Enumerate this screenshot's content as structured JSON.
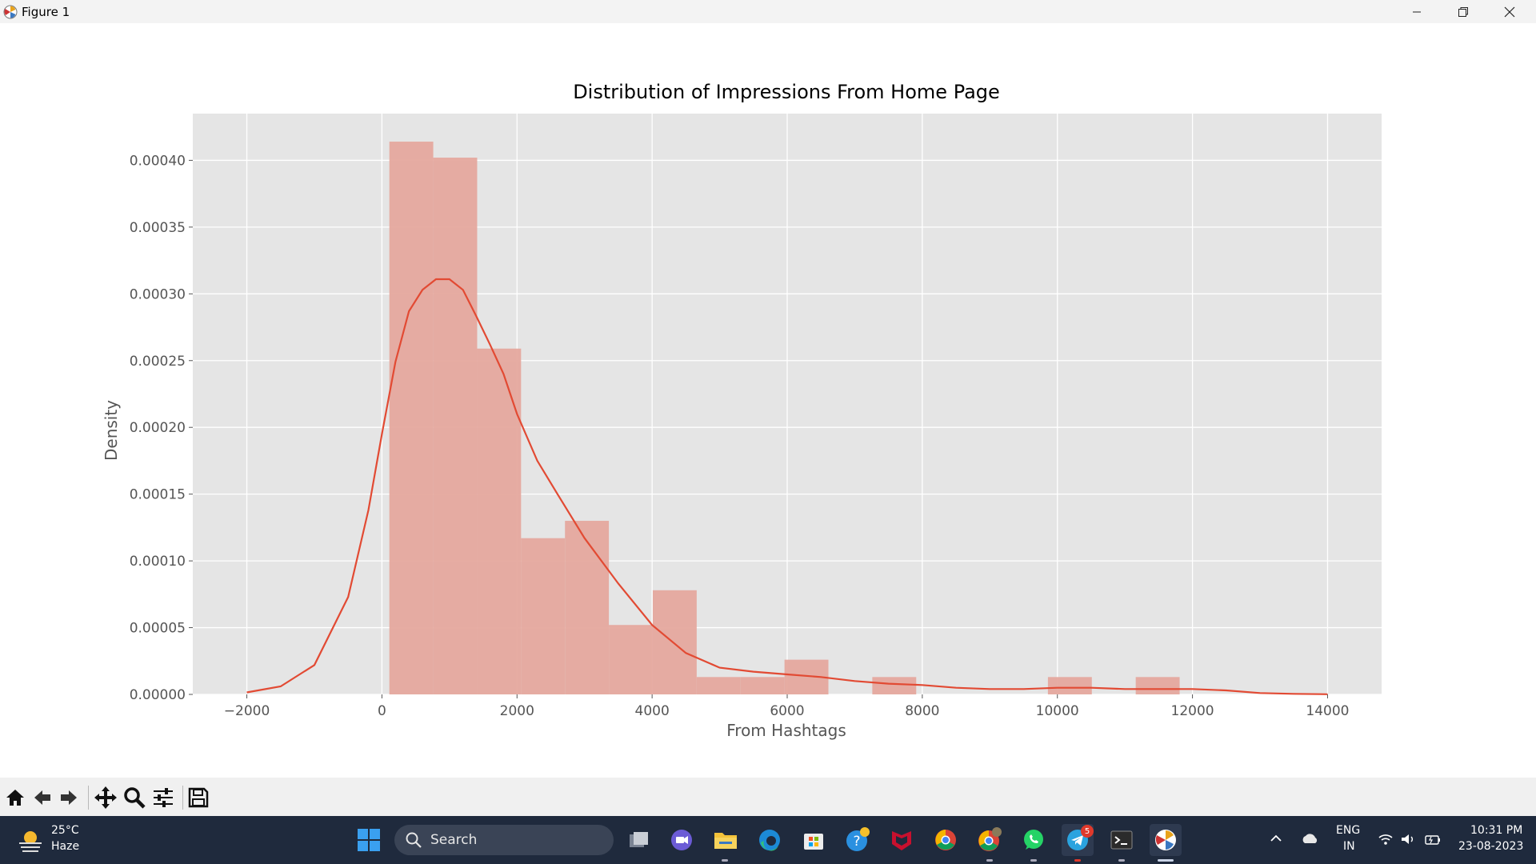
{
  "window": {
    "title": "Figure 1"
  },
  "chart_data": {
    "type": "histogram",
    "title": "Distribution of Impressions From Home Page",
    "xlabel": "From Hashtags",
    "ylabel": "Density",
    "xlim": [
      -2800,
      14800
    ],
    "ylim": [
      0,
      0.000435
    ],
    "xticks": [
      -2000,
      0,
      2000,
      4000,
      6000,
      8000,
      10000,
      12000,
      14000
    ],
    "xtick_labels": [
      "−2000",
      "0",
      "2000",
      "4000",
      "6000",
      "8000",
      "10000",
      "12000",
      "14000"
    ],
    "yticks": [
      0,
      5e-05,
      0.0001,
      0.00015,
      0.0002,
      0.00025,
      0.0003,
      0.00035,
      0.0004
    ],
    "ytick_labels": [
      "0.00000",
      "0.00005",
      "0.00010",
      "0.00015",
      "0.00020",
      "0.00025",
      "0.00030",
      "0.00035",
      "0.00040"
    ],
    "grid": true,
    "colors": {
      "bar": "#e5a89e",
      "kde": "#e24a33",
      "axes_bg": "#e5e5e5",
      "grid": "#ffffff"
    },
    "bins": [
      {
        "x0": 110,
        "x1": 760,
        "density": 0.000414
      },
      {
        "x0": 760,
        "x1": 1410,
        "density": 0.000402
      },
      {
        "x0": 1410,
        "x1": 2060,
        "density": 0.000259
      },
      {
        "x0": 2060,
        "x1": 2710,
        "density": 0.000117
      },
      {
        "x0": 2710,
        "x1": 3360,
        "density": 0.00013
      },
      {
        "x0": 3360,
        "x1": 4010,
        "density": 5.2e-05
      },
      {
        "x0": 4010,
        "x1": 4660,
        "density": 7.8e-05
      },
      {
        "x0": 4660,
        "x1": 5310,
        "density": 1.3e-05
      },
      {
        "x0": 5310,
        "x1": 5960,
        "density": 1.3e-05
      },
      {
        "x0": 5960,
        "x1": 6610,
        "density": 2.6e-05
      },
      {
        "x0": 6610,
        "x1": 7260,
        "density": 0
      },
      {
        "x0": 7260,
        "x1": 7910,
        "density": 1.3e-05
      },
      {
        "x0": 7910,
        "x1": 8560,
        "density": 0
      },
      {
        "x0": 8560,
        "x1": 9210,
        "density": 0
      },
      {
        "x0": 9210,
        "x1": 9860,
        "density": 0
      },
      {
        "x0": 9860,
        "x1": 10510,
        "density": 1.3e-05
      },
      {
        "x0": 10510,
        "x1": 11160,
        "density": 0
      },
      {
        "x0": 11160,
        "x1": 11810,
        "density": 1.3e-05
      }
    ],
    "kde": {
      "x": [
        -2000,
        -1500,
        -1000,
        -500,
        -200,
        0,
        200,
        400,
        600,
        800,
        1000,
        1200,
        1400,
        1600,
        1800,
        2000,
        2300,
        2600,
        3000,
        3500,
        4000,
        4500,
        5000,
        5500,
        6000,
        6500,
        7000,
        7500,
        8000,
        8500,
        9000,
        9500,
        10000,
        10500,
        11000,
        11500,
        12000,
        12500,
        13000,
        13500,
        14000
      ],
      "y": [
        1.5e-06,
        6e-06,
        2.2e-05,
        7.3e-05,
        0.000138,
        0.000195,
        0.000249,
        0.000287,
        0.000303,
        0.000311,
        0.000311,
        0.000303,
        0.000283,
        0.000262,
        0.00024,
        0.00021,
        0.000175,
        0.00015,
        0.000117,
        8.3e-05,
        5.2e-05,
        3.1e-05,
        2e-05,
        1.7e-05,
        1.5e-05,
        1.3e-05,
        1e-05,
        8e-06,
        7e-06,
        5e-06,
        4e-06,
        4e-06,
        5e-06,
        5e-06,
        4e-06,
        4e-06,
        4e-06,
        3e-06,
        1e-06,
        4e-07,
        1e-07
      ]
    }
  },
  "toolbar": {
    "buttons": [
      "home",
      "back",
      "forward",
      "pan",
      "zoom",
      "configure-subplots",
      "save"
    ]
  },
  "taskbar": {
    "weather": {
      "temp": "25°C",
      "condition": "Haze"
    },
    "search": {
      "label": "Search"
    },
    "language": {
      "line1": "ENG",
      "line2": "IN"
    },
    "clock": {
      "time": "10:31 PM",
      "date": "23-08-2023"
    },
    "telegram_badge": "5"
  }
}
